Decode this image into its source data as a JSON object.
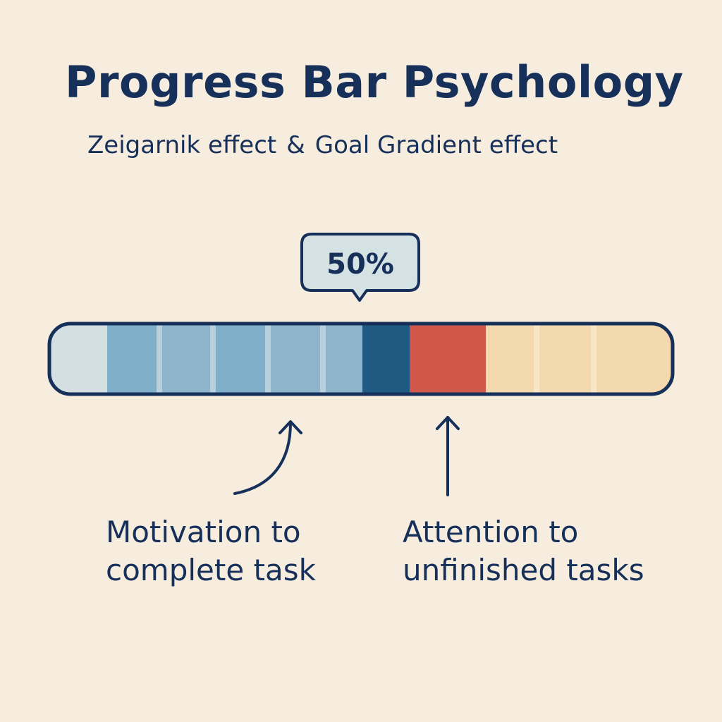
{
  "title": "Progress Bar Psychology",
  "subtitle": {
    "left": "Zeigarnik effect",
    "amp": "&",
    "right": "Goal Gradient effect"
  },
  "progress": {
    "label": "50%",
    "value": 0.5
  },
  "captions": {
    "left": [
      "Motivation to",
      "complete task"
    ],
    "right": [
      "Attention to",
      "unfinished tasks"
    ]
  },
  "colors": {
    "background": "#f7eddf",
    "outline": "#16305a",
    "empty_start": "#d3dfe0",
    "completed_a": "#7fafc9",
    "completed_b": "#8eb4cb",
    "divider": "#b8d0dc",
    "current": "#1f5a83",
    "next": "#d0574a",
    "remaining": "#f4d8ae",
    "remaining_divider": "#f8e6c9",
    "bubble_fill": "#d5e2e4"
  }
}
